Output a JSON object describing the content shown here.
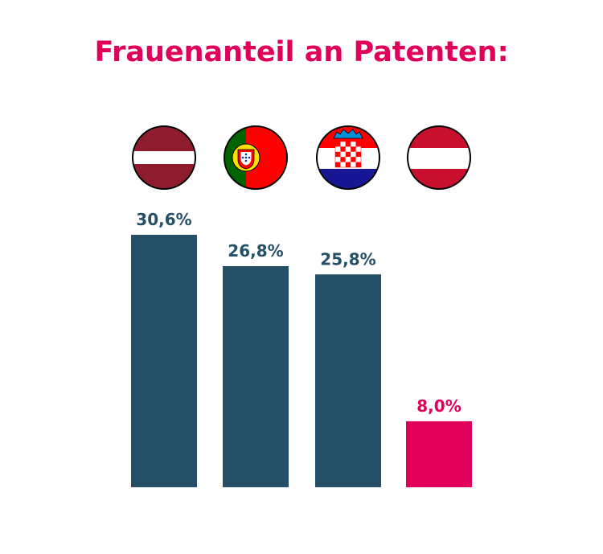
{
  "chart_data": {
    "type": "bar",
    "title": "Frauenanteil an Patenten:",
    "categories": [
      "Lettland",
      "Portugal",
      "Kroatien",
      "Österreich"
    ],
    "values": [
      30.6,
      26.8,
      25.8,
      8.0
    ],
    "value_labels": [
      "30,6%",
      "26,8%",
      "25,8%",
      "8,0%"
    ],
    "flag_icons": [
      "latvia-flag-icon",
      "portugal-flag-icon",
      "croatia-flag-icon",
      "austria-flag-icon"
    ],
    "ylim": [
      0,
      35
    ],
    "grid": false,
    "colors": {
      "default_bar": "#244f66",
      "highlight_bar": "#e0005a",
      "default_label": "#244f66",
      "highlight_label": "#e0005a",
      "title": "#e0005a"
    },
    "highlight_index": 3
  }
}
